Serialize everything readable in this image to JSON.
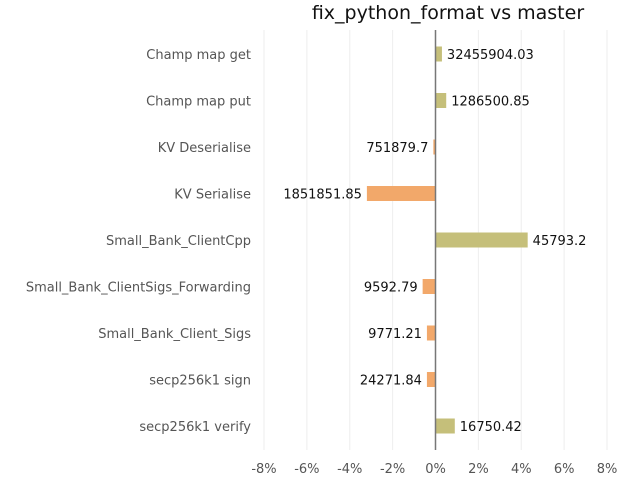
{
  "chart_data": {
    "type": "bar",
    "orientation": "horizontal",
    "title": "fix_python_format vs master",
    "xlabel": "",
    "ylabel": "",
    "xlim": [
      -8,
      8
    ],
    "x_ticks": [
      -8,
      -6,
      -4,
      -2,
      0,
      2,
      4,
      6,
      8
    ],
    "x_tick_labels": [
      "-8%",
      "-6%",
      "-4%",
      "-2%",
      "0%",
      "2%",
      "4%",
      "6%",
      "8%"
    ],
    "grid": "vertical",
    "colors": {
      "positive": "#c5bf7a",
      "negative": "#f2a86a",
      "zero_line": "#777777",
      "grid": "#eeeeee"
    },
    "categories": [
      "Champ map get",
      "Champ map put",
      "KV Deserialise",
      "KV Serialise",
      "Small_Bank_ClientCpp",
      "Small_Bank_ClientSigs_Forwarding",
      "Small_Bank_Client_Sigs",
      "secp256k1 sign",
      "secp256k1 verify"
    ],
    "values": [
      0.3,
      0.5,
      -0.1,
      -3.2,
      4.3,
      -0.6,
      -0.4,
      -0.4,
      0.9
    ],
    "data_labels": [
      "32455904.03",
      "1286500.85",
      "751879.7",
      "1851851.85",
      "45793.2",
      "9592.79",
      "9771.21",
      "24271.84",
      "16750.42"
    ]
  }
}
